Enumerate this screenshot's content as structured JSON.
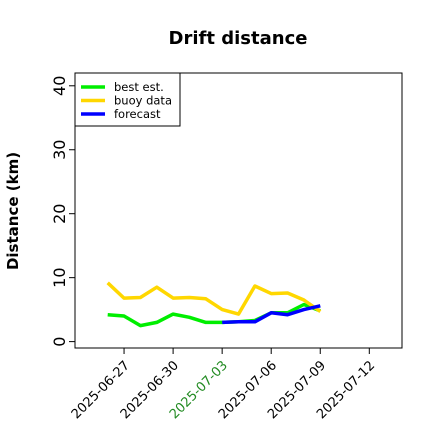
{
  "chart_data": {
    "type": "line",
    "title": "Drift distance",
    "xlabel": "",
    "ylabel": "Distance (km)",
    "ylim": [
      -1,
      42
    ],
    "xlim": [
      "2025-06-24",
      "2025-07-14"
    ],
    "yticks": [
      0,
      10,
      20,
      30,
      40
    ],
    "xticks": [
      {
        "label": "2025-06-27",
        "value": "2025-06-27",
        "color": "#000000"
      },
      {
        "label": "2025-06-30",
        "value": "2025-06-30",
        "color": "#000000"
      },
      {
        "label": "2025-07-03",
        "value": "2025-07-03",
        "color": "#228B22"
      },
      {
        "label": "2025-07-06",
        "value": "2025-07-06",
        "color": "#000000"
      },
      {
        "label": "2025-07-09",
        "value": "2025-07-09",
        "color": "#000000"
      },
      {
        "label": "2025-07-12",
        "value": "2025-07-12",
        "color": "#000000"
      }
    ],
    "grid": false,
    "legend_position": "top-left",
    "series": [
      {
        "name": "best est.",
        "color": "#00ee00",
        "x": [
          "2025-06-26",
          "2025-06-27",
          "2025-06-28",
          "2025-06-29",
          "2025-06-30",
          "2025-07-01",
          "2025-07-02",
          "2025-07-03",
          "2025-07-04",
          "2025-07-05",
          "2025-07-06",
          "2025-07-07",
          "2025-07-08",
          "2025-07-09"
        ],
        "y": [
          4.2,
          4.0,
          2.5,
          3.0,
          4.3,
          3.8,
          3.0,
          3.0,
          3.1,
          3.3,
          4.5,
          4.5,
          5.8,
          4.8
        ]
      },
      {
        "name": "buoy data",
        "color": "#ffd700",
        "x": [
          "2025-06-26",
          "2025-06-27",
          "2025-06-28",
          "2025-06-29",
          "2025-06-30",
          "2025-07-01",
          "2025-07-02",
          "2025-07-03",
          "2025-07-04",
          "2025-07-05",
          "2025-07-06",
          "2025-07-07",
          "2025-07-08",
          "2025-07-09"
        ],
        "y": [
          9.2,
          6.8,
          6.9,
          8.5,
          6.8,
          6.9,
          6.7,
          5.0,
          4.3,
          8.7,
          7.5,
          7.6,
          6.5,
          4.7
        ]
      },
      {
        "name": "forecast",
        "color": "#0000ff",
        "x": [
          "2025-07-03",
          "2025-07-04",
          "2025-07-05",
          "2025-07-06",
          "2025-07-07",
          "2025-07-08",
          "2025-07-09"
        ],
        "y": [
          3.0,
          3.1,
          3.1,
          4.5,
          4.2,
          5.0,
          5.6
        ]
      }
    ]
  }
}
